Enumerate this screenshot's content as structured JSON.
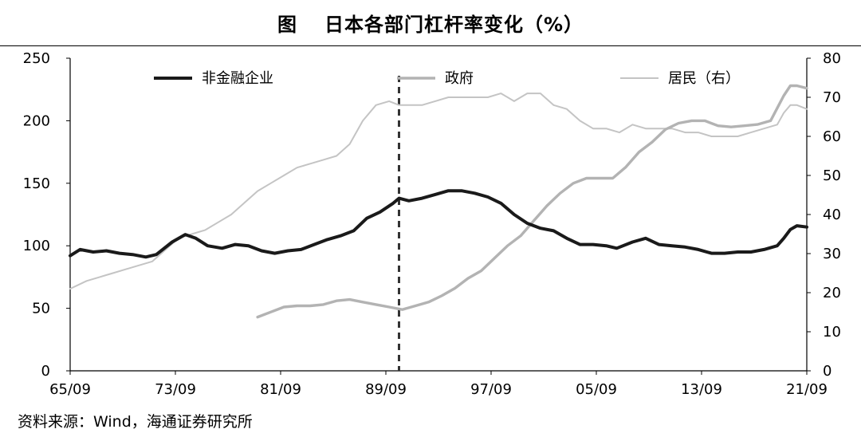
{
  "figure": {
    "title_prefix": "图",
    "title": "日本各部门杠杆率变化（%）",
    "source": "资料来源：Wind，海通证券研究所"
  },
  "chart_data": {
    "type": "line",
    "title": "日本各部门杠杆率变化（%）",
    "x_axis": {
      "ticks": [
        "65/09",
        "73/09",
        "81/09",
        "89/09",
        "97/09",
        "05/09",
        "13/09",
        "21/09"
      ],
      "range": [
        1965.75,
        2021.75
      ]
    },
    "y_left": {
      "range": [
        0,
        250
      ],
      "ticks": [
        0,
        50,
        100,
        150,
        200,
        250
      ]
    },
    "y_right": {
      "range": [
        0,
        80
      ],
      "ticks": [
        0,
        10,
        20,
        30,
        40,
        50,
        60,
        70,
        80
      ]
    },
    "reference_line": {
      "x": 1990.75,
      "style": "dashed"
    },
    "legend_placement": "top",
    "colors": {
      "nonfinancial": "#1a1a1a",
      "government": "#b3b3b3",
      "household": "#c4c4c4"
    },
    "series": [
      {
        "name": "非金融企业",
        "axis": "left",
        "style": "thick-dark",
        "points": [
          [
            1965.75,
            92
          ],
          [
            1966.5,
            97
          ],
          [
            1967.5,
            95
          ],
          [
            1968.5,
            96
          ],
          [
            1969.5,
            94
          ],
          [
            1970.5,
            93
          ],
          [
            1971.5,
            91
          ],
          [
            1972.3,
            93
          ],
          [
            1973.5,
            103
          ],
          [
            1974.5,
            109
          ],
          [
            1975.3,
            106
          ],
          [
            1976.2,
            100
          ],
          [
            1977.3,
            98
          ],
          [
            1978.3,
            101
          ],
          [
            1979.3,
            100
          ],
          [
            1980.3,
            96
          ],
          [
            1981.3,
            94
          ],
          [
            1982.3,
            96
          ],
          [
            1983.3,
            97
          ],
          [
            1984.3,
            101
          ],
          [
            1985.3,
            105
          ],
          [
            1986.3,
            108
          ],
          [
            1987.3,
            112
          ],
          [
            1988.3,
            122
          ],
          [
            1989.3,
            127
          ],
          [
            1990.3,
            134
          ],
          [
            1990.75,
            138
          ],
          [
            1991.5,
            136
          ],
          [
            1992.5,
            138
          ],
          [
            1993.5,
            141
          ],
          [
            1994.5,
            144
          ],
          [
            1995.5,
            144
          ],
          [
            1996.5,
            142
          ],
          [
            1997.5,
            139
          ],
          [
            1998.5,
            134
          ],
          [
            1999.5,
            125
          ],
          [
            2000.5,
            118
          ],
          [
            2001.5,
            114
          ],
          [
            2002.5,
            112
          ],
          [
            2003.5,
            106
          ],
          [
            2004.5,
            101
          ],
          [
            2005.5,
            101
          ],
          [
            2006.5,
            100
          ],
          [
            2007.3,
            98
          ],
          [
            2008.5,
            103
          ],
          [
            2009.5,
            106
          ],
          [
            2010.5,
            101
          ],
          [
            2011.5,
            100
          ],
          [
            2012.5,
            99
          ],
          [
            2013.5,
            97
          ],
          [
            2014.5,
            94
          ],
          [
            2015.5,
            94
          ],
          [
            2016.5,
            95
          ],
          [
            2017.5,
            95
          ],
          [
            2018.5,
            97
          ],
          [
            2019.5,
            100
          ],
          [
            2020.0,
            106
          ],
          [
            2020.5,
            113
          ],
          [
            2021.0,
            116
          ],
          [
            2021.75,
            115
          ]
        ]
      },
      {
        "name": "政府",
        "axis": "left",
        "style": "thick-gray",
        "points": [
          [
            1980.0,
            43
          ],
          [
            1981.0,
            47
          ],
          [
            1982.0,
            51
          ],
          [
            1983.0,
            52
          ],
          [
            1984.0,
            52
          ],
          [
            1985.0,
            53
          ],
          [
            1986.0,
            56
          ],
          [
            1987.0,
            57
          ],
          [
            1988.0,
            55
          ],
          [
            1989.0,
            53
          ],
          [
            1990.0,
            51
          ],
          [
            1991.0,
            49
          ],
          [
            1992.0,
            52
          ],
          [
            1993.0,
            55
          ],
          [
            1994.0,
            60
          ],
          [
            1995.0,
            66
          ],
          [
            1996.0,
            74
          ],
          [
            1997.0,
            80
          ],
          [
            1998.0,
            90
          ],
          [
            1999.0,
            100
          ],
          [
            2000.0,
            108
          ],
          [
            2001.0,
            120
          ],
          [
            2002.0,
            132
          ],
          [
            2003.0,
            142
          ],
          [
            2004.0,
            150
          ],
          [
            2005.0,
            154
          ],
          [
            2006.0,
            154
          ],
          [
            2007.0,
            154
          ],
          [
            2008.0,
            163
          ],
          [
            2009.0,
            175
          ],
          [
            2010.0,
            183
          ],
          [
            2011.0,
            193
          ],
          [
            2012.0,
            198
          ],
          [
            2013.0,
            200
          ],
          [
            2014.0,
            200
          ],
          [
            2015.0,
            196
          ],
          [
            2016.0,
            195
          ],
          [
            2017.0,
            196
          ],
          [
            2018.0,
            197
          ],
          [
            2019.0,
            200
          ],
          [
            2020.0,
            220
          ],
          [
            2020.5,
            228
          ],
          [
            2021.0,
            228
          ],
          [
            2021.75,
            226
          ]
        ]
      },
      {
        "name": "居民（右）",
        "axis": "right",
        "style": "thin-gray",
        "points": [
          [
            1965.75,
            21
          ],
          [
            1967.0,
            23
          ],
          [
            1968.0,
            24
          ],
          [
            1969.0,
            25
          ],
          [
            1970.0,
            26
          ],
          [
            1971.0,
            27
          ],
          [
            1972.0,
            28
          ],
          [
            1973.0,
            31
          ],
          [
            1974.0,
            34
          ],
          [
            1975.0,
            35
          ],
          [
            1976.0,
            36
          ],
          [
            1977.0,
            38
          ],
          [
            1978.0,
            40
          ],
          [
            1979.0,
            43
          ],
          [
            1980.0,
            46
          ],
          [
            1981.0,
            48
          ],
          [
            1982.0,
            50
          ],
          [
            1983.0,
            52
          ],
          [
            1984.0,
            53
          ],
          [
            1985.0,
            54
          ],
          [
            1986.0,
            55
          ],
          [
            1987.0,
            58
          ],
          [
            1988.0,
            64
          ],
          [
            1989.0,
            68
          ],
          [
            1990.0,
            69
          ],
          [
            1990.75,
            68
          ],
          [
            1991.5,
            68
          ],
          [
            1992.5,
            68
          ],
          [
            1993.5,
            69
          ],
          [
            1994.5,
            70
          ],
          [
            1995.5,
            70
          ],
          [
            1996.5,
            70
          ],
          [
            1997.5,
            70
          ],
          [
            1998.5,
            71
          ],
          [
            1999.5,
            69
          ],
          [
            2000.5,
            71
          ],
          [
            2001.5,
            71
          ],
          [
            2002.5,
            68
          ],
          [
            2003.5,
            67
          ],
          [
            2004.5,
            64
          ],
          [
            2005.5,
            62
          ],
          [
            2006.5,
            62
          ],
          [
            2007.5,
            61
          ],
          [
            2008.5,
            63
          ],
          [
            2009.5,
            62
          ],
          [
            2010.5,
            62
          ],
          [
            2011.5,
            62
          ],
          [
            2012.5,
            61
          ],
          [
            2013.5,
            61
          ],
          [
            2014.5,
            60
          ],
          [
            2015.5,
            60
          ],
          [
            2016.5,
            60
          ],
          [
            2017.5,
            61
          ],
          [
            2018.5,
            62
          ],
          [
            2019.5,
            63
          ],
          [
            2020.0,
            66
          ],
          [
            2020.5,
            68
          ],
          [
            2021.0,
            68
          ],
          [
            2021.75,
            67
          ]
        ]
      }
    ]
  }
}
